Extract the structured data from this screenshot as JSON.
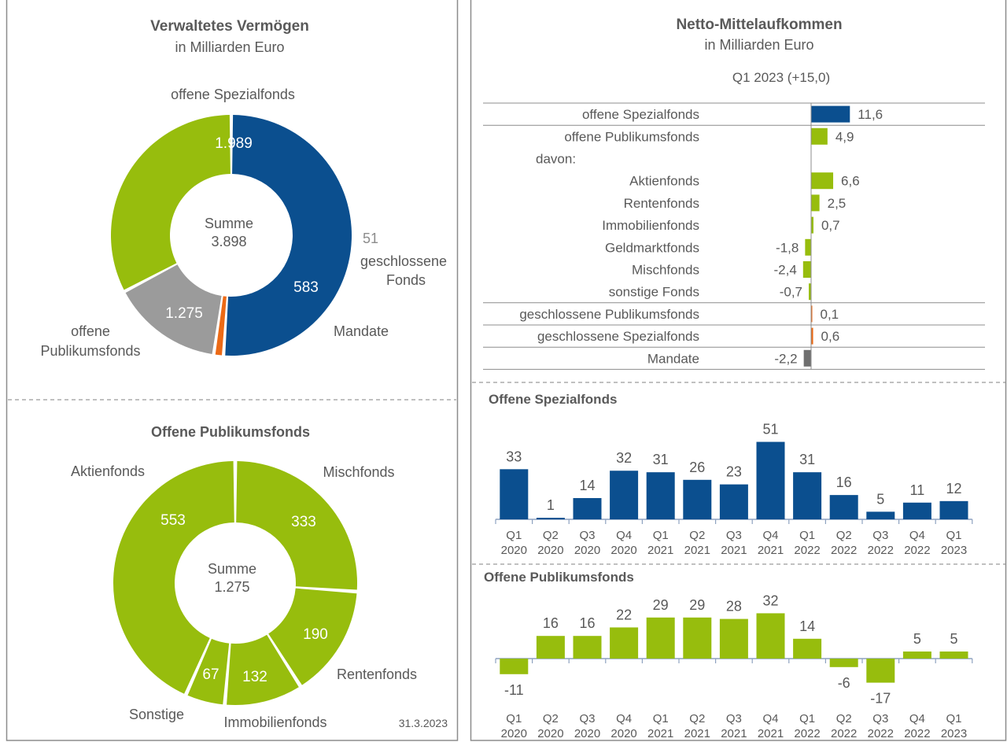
{
  "date": "31.3.2023",
  "colors": {
    "blue": "#0b4f8f",
    "green": "#97bd0d",
    "gray": "#9b9b9b",
    "orange": "#ec6a16",
    "darkgray": "#6f6f6f",
    "text": "#595959",
    "border": "#8c8c8c"
  },
  "chart_data": [
    {
      "type": "pie",
      "title": "Verwaltetes Vermögen",
      "subtitle": "in Milliarden Euro",
      "center_label": "Summe",
      "center_value": "3.898",
      "slices": [
        {
          "label": "offene Spezialfonds",
          "value": 1989,
          "value_label": "1.989",
          "color": "#0b4f8f"
        },
        {
          "label": "geschlossene Fonds",
          "value": 51,
          "value_label": "51",
          "color": "#ec6a16"
        },
        {
          "label": "Mandate",
          "value": 583,
          "value_label": "583",
          "color": "#9b9b9b"
        },
        {
          "label": "offene Publikumsfonds",
          "value": 1275,
          "value_label": "1.275",
          "color": "#97bd0d"
        }
      ]
    },
    {
      "type": "pie",
      "title": "Offene Publikumsfonds",
      "center_label": "Summe",
      "center_value": "1.275",
      "slices": [
        {
          "label": "Mischfonds",
          "value": 333,
          "value_label": "333",
          "color": "#97bd0d"
        },
        {
          "label": "Rentenfonds",
          "value": 190,
          "value_label": "190",
          "color": "#97bd0d"
        },
        {
          "label": "Immobilienfonds",
          "value": 132,
          "value_label": "132",
          "color": "#97bd0d"
        },
        {
          "label": "Sonstige",
          "value": 67,
          "value_label": "67",
          "color": "#97bd0d"
        },
        {
          "label": "Aktienfonds",
          "value": 553,
          "value_label": "553",
          "color": "#97bd0d"
        }
      ]
    },
    {
      "type": "bar",
      "orientation": "horizontal",
      "title": "Netto-Mittelaufkommen",
      "subtitle": "in Milliarden Euro",
      "period_label": "Q1 2023 (+15,0)",
      "rows": [
        {
          "label": "offene Spezialfonds",
          "value": 11.6,
          "value_label": "11,6",
          "color": "#0b4f8f"
        },
        {
          "label": "offene Publikumsfonds",
          "value": 4.9,
          "value_label": "4,9",
          "color": "#97bd0d"
        },
        {
          "label": "davon:",
          "value": null,
          "value_label": "",
          "color": ""
        },
        {
          "label": "Aktienfonds",
          "value": 6.6,
          "value_label": "6,6",
          "color": "#97bd0d"
        },
        {
          "label": "Rentenfonds",
          "value": 2.5,
          "value_label": "2,5",
          "color": "#97bd0d"
        },
        {
          "label": "Immobilienfonds",
          "value": 0.7,
          "value_label": "0,7",
          "color": "#97bd0d"
        },
        {
          "label": "Geldmarktfonds",
          "value": -1.8,
          "value_label": "-1,8",
          "color": "#97bd0d"
        },
        {
          "label": "Mischfonds",
          "value": -2.4,
          "value_label": "-2,4",
          "color": "#97bd0d"
        },
        {
          "label": "sonstige Fonds",
          "value": -0.7,
          "value_label": "-0,7",
          "color": "#97bd0d"
        },
        {
          "label": "geschlossene Publikumsfonds",
          "value": 0.1,
          "value_label": "0,1",
          "color": "#ec6a16"
        },
        {
          "label": "geschlossene Spezialfonds",
          "value": 0.6,
          "value_label": "0,6",
          "color": "#ec6a16"
        },
        {
          "label": "Mandate",
          "value": -2.2,
          "value_label": "-2,2",
          "color": "#6f6f6f"
        }
      ]
    },
    {
      "type": "bar",
      "title": "Offene Spezialfonds",
      "categories": [
        "Q1 2020",
        "Q2 2020",
        "Q3 2020",
        "Q4 2020",
        "Q1 2021",
        "Q2 2021",
        "Q3 2021",
        "Q4 2021",
        "Q1 2022",
        "Q2 2022",
        "Q3 2022",
        "Q4 2022",
        "Q1 2023"
      ],
      "category_lines": [
        [
          "Q1",
          "2020"
        ],
        [
          "Q2",
          "2020"
        ],
        [
          "Q3",
          "2020"
        ],
        [
          "Q4",
          "2020"
        ],
        [
          "Q1",
          "2021"
        ],
        [
          "Q2",
          "2021"
        ],
        [
          "Q3",
          "2021"
        ],
        [
          "Q4",
          "2021"
        ],
        [
          "Q1",
          "2022"
        ],
        [
          "Q2",
          "2022"
        ],
        [
          "Q3",
          "2022"
        ],
        [
          "Q4",
          "2022"
        ],
        [
          "Q1",
          "2023"
        ]
      ],
      "values": [
        33,
        1,
        14,
        32,
        31,
        26,
        23,
        51,
        31,
        16,
        5,
        11,
        12
      ],
      "color": "#0b4f8f"
    },
    {
      "type": "bar",
      "title": "Offene Publikumsfonds",
      "categories": [
        "Q1 2020",
        "Q2 2020",
        "Q3 2020",
        "Q4 2020",
        "Q1 2021",
        "Q2 2021",
        "Q3 2021",
        "Q4 2021",
        "Q1 2022",
        "Q2 2022",
        "Q3 2022",
        "Q4 2022",
        "Q1 2023"
      ],
      "category_lines": [
        [
          "Q1",
          "2020"
        ],
        [
          "Q2",
          "2020"
        ],
        [
          "Q3",
          "2020"
        ],
        [
          "Q4",
          "2020"
        ],
        [
          "Q1",
          "2021"
        ],
        [
          "Q2",
          "2021"
        ],
        [
          "Q3",
          "2021"
        ],
        [
          "Q4",
          "2021"
        ],
        [
          "Q1",
          "2022"
        ],
        [
          "Q2",
          "2022"
        ],
        [
          "Q3",
          "2022"
        ],
        [
          "Q4",
          "2022"
        ],
        [
          "Q1",
          "2023"
        ]
      ],
      "values": [
        -11,
        16,
        16,
        22,
        29,
        29,
        28,
        32,
        14,
        -6,
        -17,
        5,
        5
      ],
      "color": "#97bd0d"
    }
  ]
}
